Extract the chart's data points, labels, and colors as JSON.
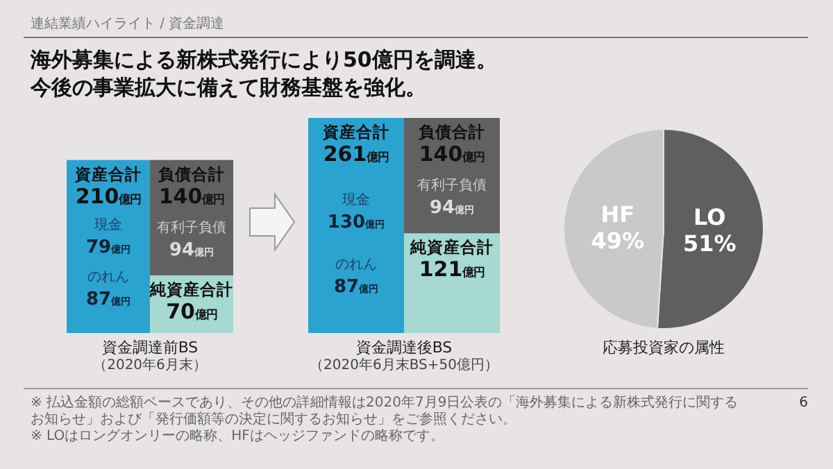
{
  "chart_data": [
    {
      "type": "other",
      "title": "海外募集による新株式発行により50億円を調達。",
      "subtitle": "今後の事業拡大に備えて財務基盤を強化。",
      "annotations": [
        "連結業績ハイライト / 資金調達",
        "※ 払込金額の総額ベースであり、その他の詳細情報は2020年7月9日公表の「海外募集による新株式発行に関するお知らせ」および「発行価額等の決定に関するお知らせ」をご参照ください。",
        "※ LOはロングオンリーの略称、HFはヘッジファンドの略称です。",
        "6"
      ]
    },
    {
      "type": "bar",
      "stacked": true,
      "categories": [
        null,
        null
      ],
      "title": "資金調達前BS",
      "subtitle": "（2020年6月末）",
      "series": [
        {
          "name": "資産合計",
          "color": "#2ba3d1",
          "values": [
            210,
            null
          ],
          "value_labels": [
            "210億円",
            null
          ]
        },
        {
          "name": "純資産合計",
          "color": "#a5d9d2",
          "values": [
            null,
            70
          ],
          "value_labels": [
            null,
            "70億円"
          ]
        },
        {
          "name": "負債合計",
          "color": "#616161",
          "values": [
            null,
            140
          ],
          "value_labels": [
            null,
            "140億円"
          ]
        }
      ],
      "annotations": [
        "現金\n79億円",
        "のれん\n87億円",
        "有利子負債\n94億円"
      ]
    },
    {
      "type": "bar",
      "stacked": true,
      "categories": [
        null,
        null
      ],
      "title": "資金調達後BS",
      "subtitle": "（2020年6月末BS+50億円）",
      "series": [
        {
          "name": "資産合計",
          "color": "#2ba3d1",
          "values": [
            261,
            null
          ],
          "value_labels": [
            "261億円",
            null
          ]
        },
        {
          "name": "純資産合計",
          "color": "#a5d9d2",
          "values": [
            null,
            121
          ],
          "value_labels": [
            null,
            "121億円"
          ]
        },
        {
          "name": "負債合計",
          "color": "#616161",
          "values": [
            null,
            140
          ],
          "value_labels": [
            null,
            "140億円"
          ]
        }
      ],
      "annotations": [
        "現金\n130億円",
        "のれん\n87億円",
        "有利子負債\n94億円"
      ]
    },
    {
      "type": "pie",
      "title": "応募投資家の属性",
      "categories": [
        "LO",
        "HF"
      ],
      "values": [
        51,
        49
      ],
      "colors": [
        "#5f5f5f",
        "#c9c9c9"
      ],
      "value_labels": [
        "51%",
        "49%"
      ]
    }
  ]
}
